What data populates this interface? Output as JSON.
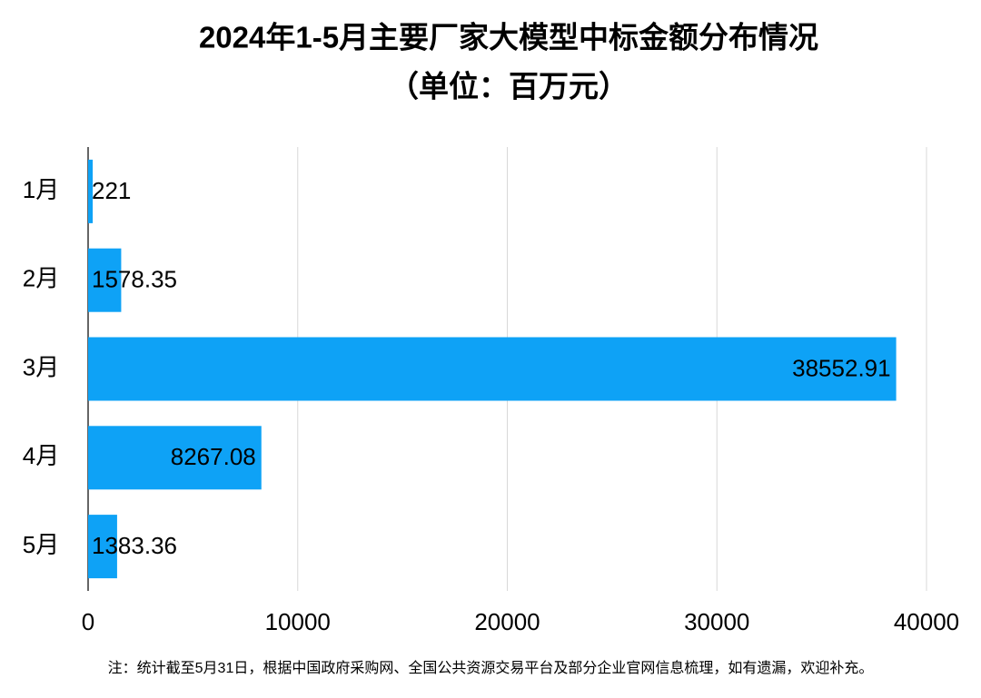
{
  "chart_data": {
    "type": "bar",
    "orientation": "horizontal",
    "title": "2024年1-5月主要厂家大模型中标金额分布情况",
    "subtitle": "（单位：百万元）",
    "categories": [
      "1月",
      "2月",
      "3月",
      "4月",
      "5月"
    ],
    "values": [
      221,
      1578.35,
      38552.91,
      8267.08,
      1383.36
    ],
    "color": "#0ea2f6",
    "xlim": [
      0,
      40000
    ],
    "xticks": [
      0,
      10000,
      20000,
      30000,
      40000
    ],
    "grid": true,
    "note": "注：统计截至5月31日，根据中国政府采购网、全国公共资源交易平台及部分企业官网信息梳理，如有遗漏，欢迎补充。"
  }
}
